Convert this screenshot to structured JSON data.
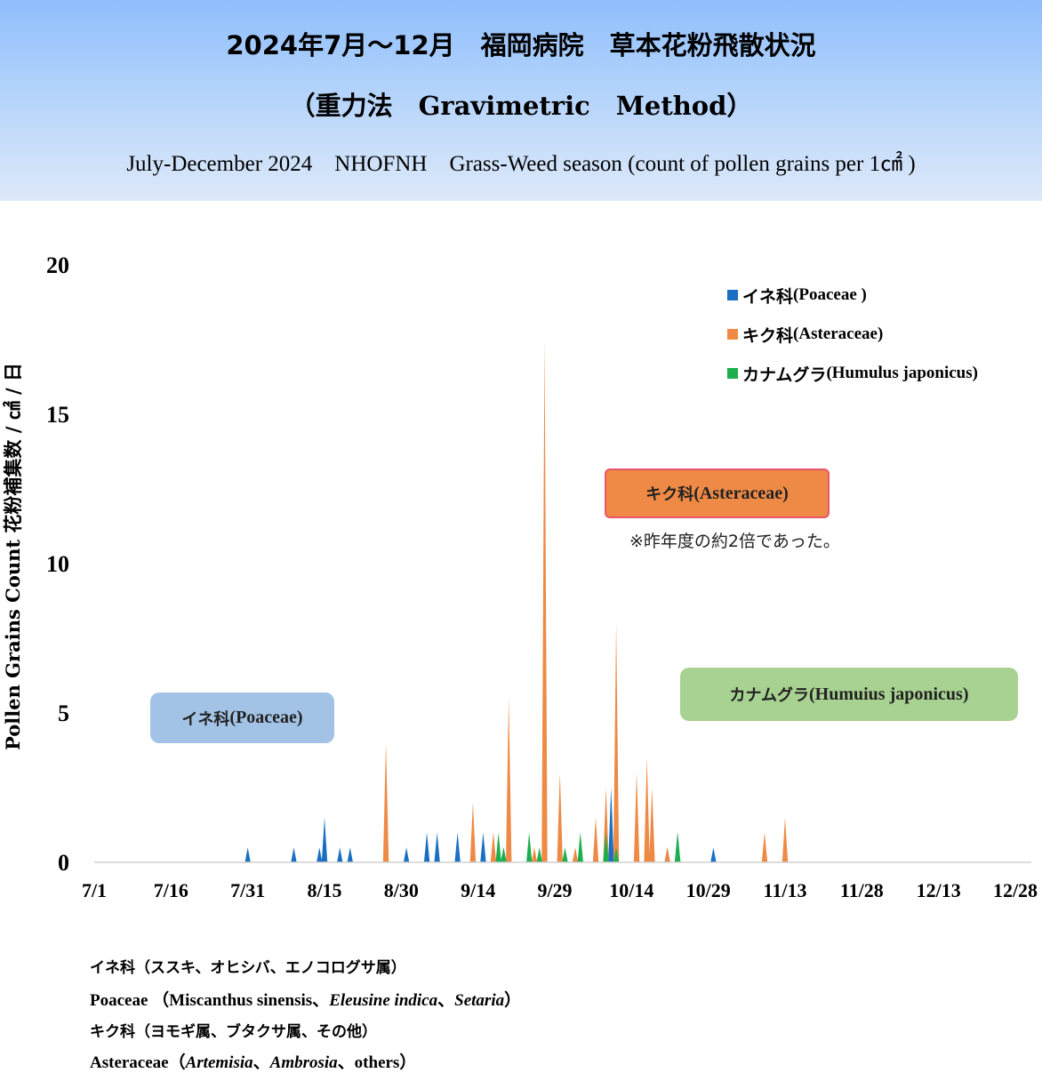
{
  "header": {
    "title_line1": "2024年7月～12月　福岡病院　草本花粉飛散状況",
    "title_line2": "（重力法　Gravimetric　Method）",
    "subtitle": "July-December 2024　NHOFNH　Grass-Weed season (count of pollen grains per 1㎠ )"
  },
  "legend": [
    {
      "jp": "イネ科",
      "en": "(Poaceae )",
      "color": "#1a6fc4"
    },
    {
      "jp": "キク科",
      "en": "(Asteraceae)",
      "color": "#ee8a45"
    },
    {
      "jp": "カナムグラ",
      "en": "(Humulus japonicus)",
      "color": "#1bb04b"
    }
  ],
  "callouts": {
    "poaceae": {
      "jp": "イネ科",
      "en": "(Poaceae)",
      "bg": "#a3c3e6"
    },
    "asteraceae": {
      "jp": "キク科",
      "en": "(Asteraceae)",
      "bg": "#ee8a45",
      "border": "#e8566d"
    },
    "humulus": {
      "jp": "カナムグラ",
      "en": "(Humuius japonicus)",
      "bg": "#a8d291"
    },
    "note": "※昨年度の約2倍であった。"
  },
  "chart_data": {
    "type": "area",
    "title": "2024年7月～12月　福岡病院　草本花粉飛散状況",
    "ylabel": "Pollen Grains Count 花粉補集数 / ㎠ / 日",
    "xlabel": "",
    "ylim": [
      0,
      20
    ],
    "yticks": [
      0,
      5,
      10,
      15,
      20
    ],
    "xlim_day": [
      0,
      180
    ],
    "xticks": [
      {
        "label": "7/1",
        "day": 0
      },
      {
        "label": "7/16",
        "day": 15
      },
      {
        "label": "7/31",
        "day": 30
      },
      {
        "label": "8/15",
        "day": 45
      },
      {
        "label": "8/30",
        "day": 60
      },
      {
        "label": "9/14",
        "day": 75
      },
      {
        "label": "9/29",
        "day": 90
      },
      {
        "label": "10/14",
        "day": 105
      },
      {
        "label": "10/29",
        "day": 120
      },
      {
        "label": "11/13",
        "day": 135
      },
      {
        "label": "11/28",
        "day": 150
      },
      {
        "label": "12/13",
        "day": 165
      },
      {
        "label": "12/28",
        "day": 180
      }
    ],
    "series": [
      {
        "name": "イネ科(Poaceae )",
        "color": "#1a6fc4",
        "points": [
          [
            30,
            0.5
          ],
          [
            39,
            0.5
          ],
          [
            44,
            0.5
          ],
          [
            45,
            1.5
          ],
          [
            48,
            0.5
          ],
          [
            50,
            0.5
          ],
          [
            61,
            0.5
          ],
          [
            65,
            1
          ],
          [
            67,
            1
          ],
          [
            71,
            1
          ],
          [
            76,
            1
          ],
          [
            79,
            0.5
          ],
          [
            80,
            0.5
          ],
          [
            101,
            2.5
          ],
          [
            112,
            0.5
          ],
          [
            114,
            1
          ],
          [
            121,
            0.5
          ]
        ]
      },
      {
        "name": "キク科(Asteraceae)",
        "color": "#ee8a45",
        "points": [
          [
            57,
            4
          ],
          [
            74,
            2
          ],
          [
            78,
            1
          ],
          [
            81,
            5.5
          ],
          [
            86,
            0.5
          ],
          [
            88,
            17.5
          ],
          [
            91,
            3
          ],
          [
            94,
            0.5
          ],
          [
            98,
            1.5
          ],
          [
            100,
            2.5
          ],
          [
            102,
            8
          ],
          [
            106,
            3
          ],
          [
            108,
            3.5
          ],
          [
            109,
            2.5
          ],
          [
            112,
            0.5
          ],
          [
            131,
            1
          ],
          [
            135,
            1.5
          ]
        ]
      },
      {
        "name": "カナムグラ(Humulus japonicus)",
        "color": "#1bb04b",
        "points": [
          [
            79,
            1
          ],
          [
            80,
            0.5
          ],
          [
            85,
            1
          ],
          [
            87,
            0.5
          ],
          [
            92,
            0.5
          ],
          [
            95,
            1
          ],
          [
            100,
            1
          ],
          [
            102,
            0.5
          ],
          [
            114,
            1
          ]
        ]
      }
    ]
  },
  "footnotes": {
    "line1": "イネ科（ススキ、オヒシバ、エノコログサ属）",
    "line2_prefix": "Poaceae （Miscanthus sinensis、",
    "line2_it1": "Eleusine indica",
    "line2_sep": "、",
    "line2_it2": "Setaria",
    "line2_suffix": "）",
    "line3": "キク科（ヨモギ属、ブタクサ属、その他）",
    "line4_prefix": "Asteraceae（",
    "line4_it1": "Artemisia",
    "line4_sep1": "、",
    "line4_it2": "Ambrosia",
    "line4_sep2": "、others）"
  }
}
